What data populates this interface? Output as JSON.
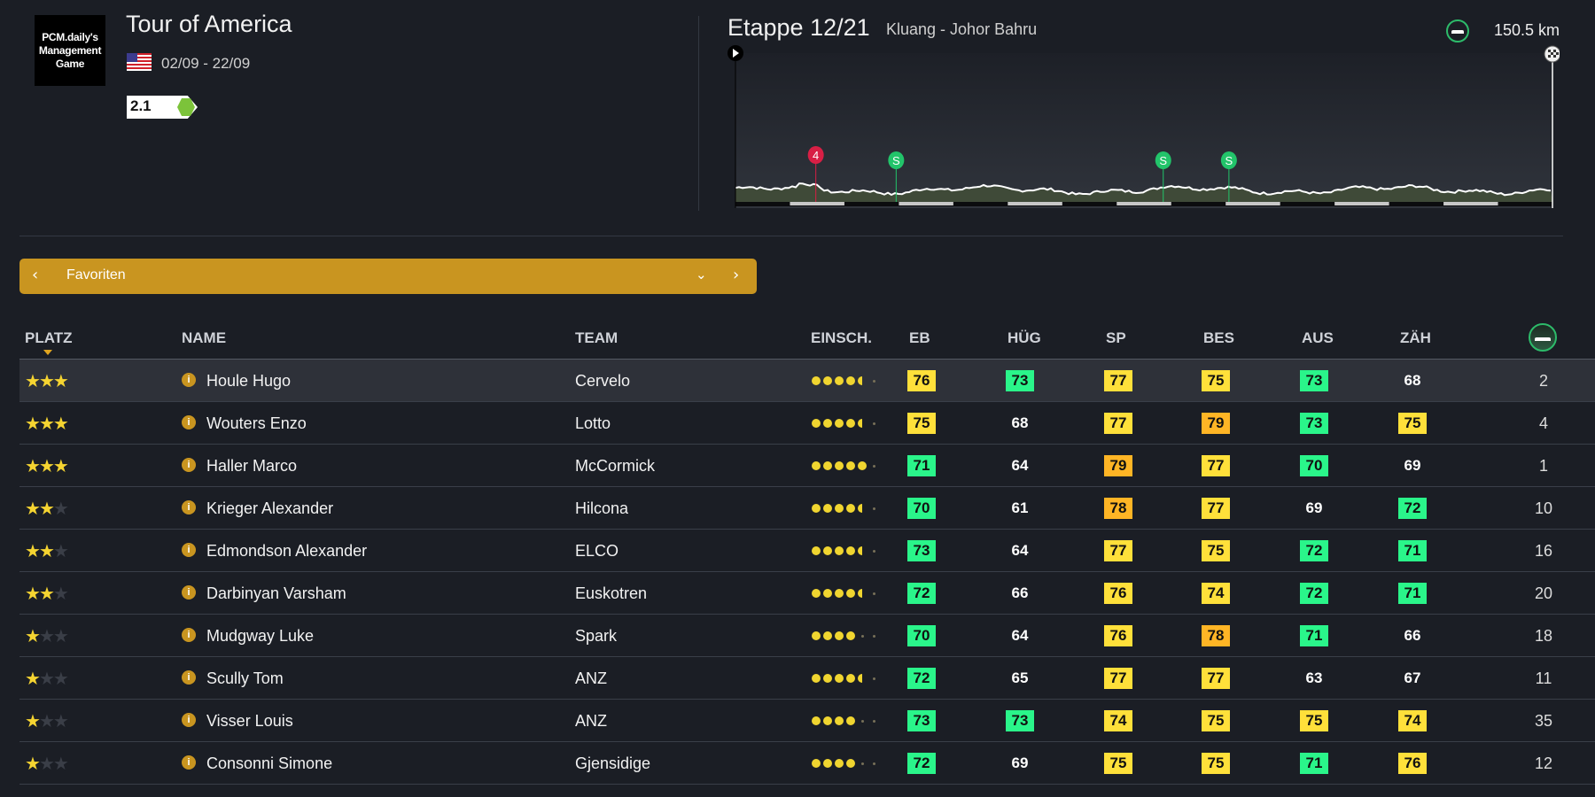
{
  "race": {
    "logo_text": "PCM.daily's Management Game",
    "title": "Tour of America",
    "flag": "us-flag-icon",
    "dates": "02/09 - 22/09",
    "category": "2.1",
    "category_color": "#7cc33a"
  },
  "stage": {
    "title": "Etappe 12/21",
    "route": "Kluang - Johor Bahru",
    "type_icon": "flat-stage-icon",
    "distance": "150.5 km",
    "distance_km": 150.5,
    "markers": [
      {
        "type": "climb",
        "label": "4",
        "km": 14.8,
        "color": "#d81f45"
      },
      {
        "type": "sprint",
        "label": "S",
        "km": 29.6,
        "color": "#22c46a"
      },
      {
        "type": "sprint",
        "label": "S",
        "km": 78.8,
        "color": "#22c46a"
      },
      {
        "type": "sprint",
        "label": "S",
        "km": 90.9,
        "color": "#22c46a"
      }
    ]
  },
  "selector": {
    "label": "Favoriten"
  },
  "table": {
    "headers": {
      "platz": "PLATZ",
      "name": "NAME",
      "team": "TEAM",
      "einsch": "EINSCH.",
      "eb": "EB",
      "hug": "HÜG",
      "sp": "SP",
      "bes": "BES",
      "aus": "AUS",
      "zah": "ZÄH"
    },
    "rating_max": 6,
    "stat_colors": {
      "green": "#2af58a",
      "yellow": "#ffe03a",
      "orange": "#ffb525"
    },
    "rows": [
      {
        "stars": 3,
        "name": "Houle Hugo",
        "team": "Cervelo",
        "einsch": 4.5,
        "eb": 76,
        "hug": 73,
        "sp": 77,
        "bes": 75,
        "aus": 73,
        "zah": 68,
        "flat": "2"
      },
      {
        "stars": 3,
        "name": "Wouters Enzo",
        "team": "Lotto",
        "einsch": 4.5,
        "eb": 75,
        "hug": 68,
        "sp": 77,
        "bes": 79,
        "aus": 73,
        "zah": 75,
        "flat": "4"
      },
      {
        "stars": 3,
        "name": "Haller Marco",
        "team": "McCormick",
        "einsch": 5,
        "eb": 71,
        "hug": 64,
        "sp": 79,
        "bes": 77,
        "aus": 70,
        "zah": 69,
        "flat": "1"
      },
      {
        "stars": 2,
        "name": "Krieger Alexander",
        "team": "Hilcona",
        "einsch": 4.5,
        "eb": 70,
        "hug": 61,
        "sp": 78,
        "bes": 77,
        "aus": 69,
        "zah": 72,
        "flat": "10"
      },
      {
        "stars": 2,
        "name": "Edmondson Alexander",
        "team": "ELCO",
        "einsch": 4.5,
        "eb": 73,
        "hug": 64,
        "sp": 77,
        "bes": 75,
        "aus": 72,
        "zah": 71,
        "flat": "16"
      },
      {
        "stars": 2,
        "name": "Darbinyan Varsham",
        "team": "Euskotren",
        "einsch": 4.5,
        "eb": 72,
        "hug": 66,
        "sp": 76,
        "bes": 74,
        "aus": 72,
        "zah": 71,
        "flat": "20"
      },
      {
        "stars": 1,
        "name": "Mudgway Luke",
        "team": "Spark",
        "einsch": 4,
        "eb": 70,
        "hug": 64,
        "sp": 76,
        "bes": 78,
        "aus": 71,
        "zah": 66,
        "flat": "18"
      },
      {
        "stars": 1,
        "name": "Scully Tom",
        "team": "ANZ",
        "einsch": 4.5,
        "eb": 72,
        "hug": 65,
        "sp": 77,
        "bes": 77,
        "aus": 63,
        "zah": 67,
        "flat": "11"
      },
      {
        "stars": 1,
        "name": "Visser Louis",
        "team": "ANZ",
        "einsch": 4,
        "eb": 73,
        "hug": 73,
        "sp": 74,
        "bes": 75,
        "aus": 75,
        "zah": 74,
        "flat": "35"
      },
      {
        "stars": 1,
        "name": "Consonni Simone",
        "team": "Gjensidige",
        "einsch": 4,
        "eb": 72,
        "hug": 69,
        "sp": 75,
        "bes": 75,
        "aus": 71,
        "zah": 76,
        "flat": "12"
      }
    ]
  }
}
